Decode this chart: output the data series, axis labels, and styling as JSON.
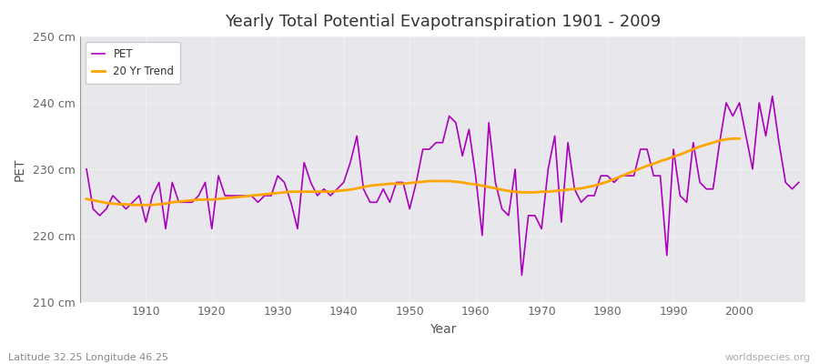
{
  "title": "Yearly Total Potential Evapotranspiration 1901 - 2009",
  "xlabel": "Year",
  "ylabel": "PET",
  "subtitle_left": "Latitude 32.25 Longitude 46.25",
  "watermark": "worldspecies.org",
  "pet_color": "#aa00bb",
  "trend_color": "#ffa500",
  "bg_color": "#ffffff",
  "plot_bg_color": "#e8e8ec",
  "ylim": [
    210,
    250
  ],
  "yticks": [
    210,
    220,
    230,
    240,
    250
  ],
  "ytick_labels": [
    "210 cm",
    "220 cm",
    "230 cm",
    "240 cm",
    "250 cm"
  ],
  "years": [
    1901,
    1902,
    1903,
    1904,
    1905,
    1906,
    1907,
    1908,
    1909,
    1910,
    1911,
    1912,
    1913,
    1914,
    1915,
    1916,
    1917,
    1918,
    1919,
    1920,
    1921,
    1922,
    1923,
    1924,
    1925,
    1926,
    1927,
    1928,
    1929,
    1930,
    1931,
    1932,
    1933,
    1934,
    1935,
    1936,
    1937,
    1938,
    1939,
    1940,
    1941,
    1942,
    1943,
    1944,
    1945,
    1946,
    1947,
    1948,
    1949,
    1950,
    1951,
    1952,
    1953,
    1954,
    1955,
    1956,
    1957,
    1958,
    1959,
    1960,
    1961,
    1962,
    1963,
    1964,
    1965,
    1966,
    1967,
    1968,
    1969,
    1970,
    1971,
    1972,
    1973,
    1974,
    1975,
    1976,
    1977,
    1978,
    1979,
    1980,
    1981,
    1982,
    1983,
    1984,
    1985,
    1986,
    1987,
    1988,
    1989,
    1990,
    1991,
    1992,
    1993,
    1994,
    1995,
    1996,
    1997,
    1998,
    1999,
    2000,
    2001,
    2002,
    2003,
    2004,
    2005,
    2006,
    2007,
    2008,
    2009
  ],
  "pet_values": [
    230,
    224,
    223,
    224,
    226,
    225,
    224,
    225,
    226,
    222,
    226,
    228,
    221,
    228,
    225,
    225,
    225,
    226,
    228,
    221,
    229,
    226,
    226,
    226,
    226,
    226,
    225,
    226,
    226,
    229,
    228,
    225,
    221,
    231,
    228,
    226,
    227,
    226,
    227,
    228,
    231,
    235,
    227,
    225,
    225,
    227,
    225,
    228,
    228,
    224,
    228,
    233,
    233,
    234,
    234,
    238,
    237,
    232,
    236,
    229,
    220,
    237,
    228,
    224,
    223,
    230,
    214,
    223,
    223,
    221,
    230,
    235,
    222,
    234,
    227,
    225,
    226,
    226,
    229,
    229,
    228,
    229,
    229,
    229,
    233,
    233,
    229,
    229,
    217,
    233,
    226,
    225,
    234,
    228,
    227,
    227,
    234,
    240,
    238,
    240,
    235,
    230,
    240,
    235,
    241,
    234,
    228,
    227,
    228
  ],
  "trend_values": [
    225.5,
    225.3,
    225.1,
    224.9,
    224.8,
    224.7,
    224.7,
    224.6,
    224.6,
    224.6,
    224.6,
    224.7,
    224.8,
    225.0,
    225.1,
    225.2,
    225.3,
    225.4,
    225.4,
    225.4,
    225.5,
    225.6,
    225.7,
    225.8,
    225.9,
    226.0,
    226.1,
    226.2,
    226.3,
    226.4,
    226.5,
    226.6,
    226.6,
    226.6,
    226.6,
    226.6,
    226.6,
    226.6,
    226.7,
    226.8,
    226.9,
    227.1,
    227.3,
    227.5,
    227.6,
    227.7,
    227.8,
    227.8,
    227.8,
    227.9,
    228.0,
    228.1,
    228.2,
    228.2,
    228.2,
    228.2,
    228.1,
    228.0,
    227.8,
    227.7,
    227.5,
    227.3,
    227.1,
    226.9,
    226.7,
    226.6,
    226.5,
    226.5,
    226.5,
    226.6,
    226.6,
    226.7,
    226.8,
    226.9,
    227.0,
    227.1,
    227.3,
    227.5,
    227.8,
    228.1,
    228.5,
    228.9,
    229.3,
    229.7,
    230.1,
    230.5,
    230.8,
    231.2,
    231.5,
    231.9,
    232.2,
    232.6,
    233.0,
    233.4,
    233.7,
    234.0,
    234.3,
    234.5,
    234.6,
    234.6,
    null,
    null,
    null,
    null,
    null,
    null,
    null,
    null,
    null
  ]
}
